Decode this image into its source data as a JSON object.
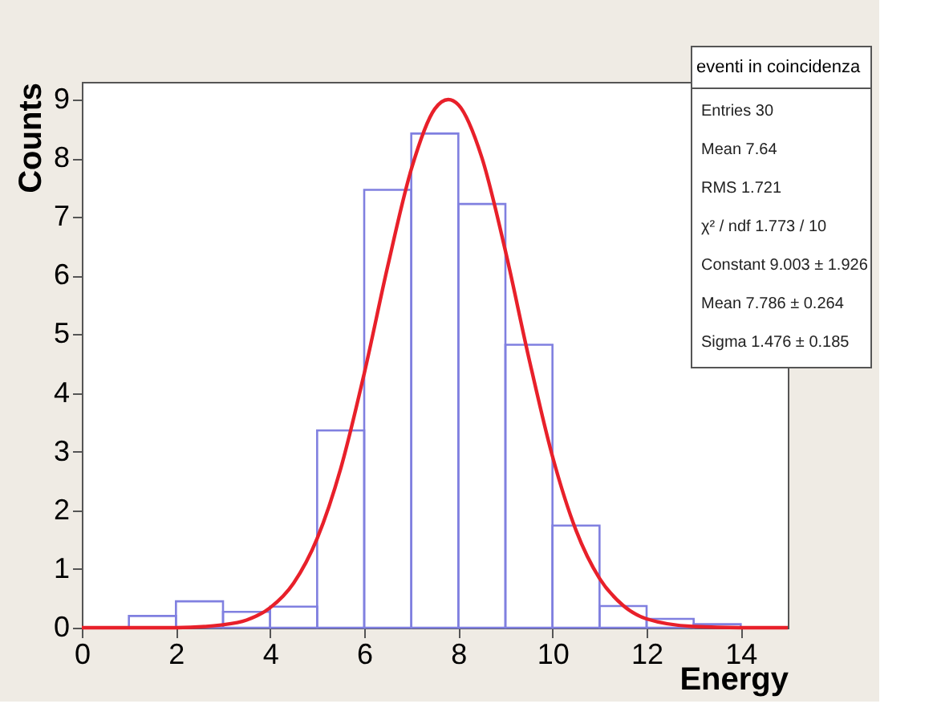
{
  "chart_data": [
    {
      "type": "histogram",
      "title": "eventi in coincidenza",
      "xlabel": "Energy",
      "ylabel": "Counts",
      "bins": [
        0,
        1,
        2,
        3,
        4,
        5,
        6,
        7,
        8,
        9,
        10,
        11,
        12,
        13,
        14,
        15
      ],
      "values": [
        0,
        0.2,
        0.45,
        0.27,
        0.36,
        3.36,
        7.46,
        8.42,
        7.22,
        4.82,
        1.74,
        0.37,
        0.15,
        0.06,
        0
      ],
      "color": "#8080e0",
      "series": [
        {
          "type": "line",
          "color": "#e8202a",
          "x": [
            0,
            1,
            2,
            3,
            3.5,
            4,
            4.5,
            5,
            5.5,
            6,
            6.5,
            7,
            7.5,
            7.786,
            8,
            8.5,
            9,
            9.5,
            10,
            10.5,
            11,
            11.5,
            12,
            13,
            14,
            15
          ],
          "values": [
            0,
            0,
            0,
            0.05,
            0.13,
            0.34,
            0.76,
            1.52,
            2.71,
            4.33,
            6.16,
            7.81,
            8.84,
            9.0,
            8.91,
            8.01,
            6.42,
            4.59,
            2.92,
            1.66,
            0.84,
            0.38,
            0.15,
            0.02,
            0,
            0
          ]
        }
      ],
      "xlim": [
        0,
        15
      ],
      "xticks": [
        0,
        2,
        4,
        6,
        8,
        10,
        12,
        14
      ],
      "ylim": [
        0,
        9.3
      ],
      "yticks": [
        0,
        1,
        2,
        3,
        4,
        5,
        6,
        7,
        8,
        9
      ],
      "grid": false,
      "marker": "none",
      "line_style": "solid",
      "annotations": [
        "Entries 30",
        "Mean 7.64",
        "RMS 1.721",
        "χ² / ndf 1.773 / 10",
        "Constant 9.003 ± 1.926",
        "Mean 7.786 ± 0.264",
        "Sigma 1.476 ± 0.185"
      ]
    }
  ]
}
